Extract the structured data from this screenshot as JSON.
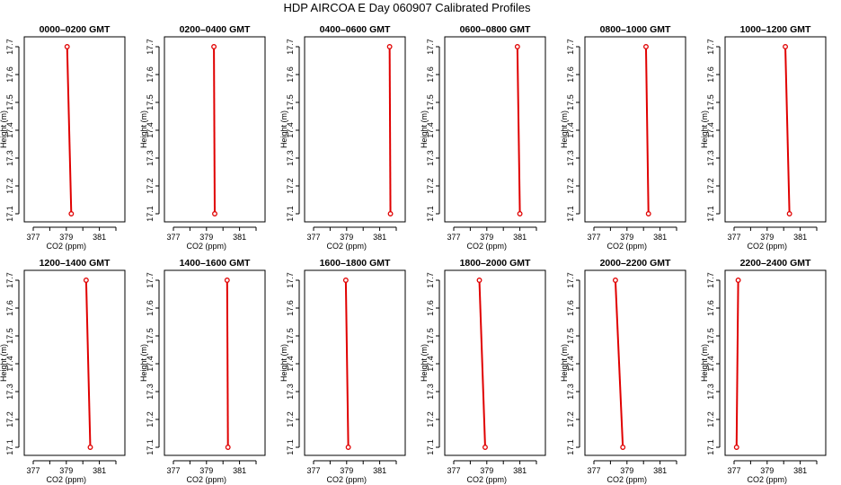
{
  "title": "HDP  AIRCOA E  Day 060907  Calibrated Profiles",
  "chart_data": [
    {
      "type": "line",
      "title": "0000–0200 GMT",
      "xlabel": "CO2 (ppm)",
      "ylabel": "Height (m)",
      "xlim": [
        377,
        382
      ],
      "ylim": [
        17.1,
        17.7
      ],
      "x_ticks": [
        377,
        379,
        381
      ],
      "y_ticks": [
        17.1,
        17.2,
        17.3,
        17.4,
        17.5,
        17.6,
        17.7
      ],
      "points": [
        {
          "co2": 379.05,
          "height": 17.7
        },
        {
          "co2": 379.3,
          "height": 17.1
        }
      ]
    },
    {
      "type": "line",
      "title": "0200–0400 GMT",
      "xlabel": "CO2 (ppm)",
      "ylabel": "Height (m)",
      "xlim": [
        377,
        382
      ],
      "ylim": [
        17.1,
        17.7
      ],
      "x_ticks": [
        377,
        379,
        381
      ],
      "y_ticks": [
        17.1,
        17.2,
        17.3,
        17.4,
        17.5,
        17.6,
        17.7
      ],
      "points": [
        {
          "co2": 379.45,
          "height": 17.7
        },
        {
          "co2": 379.5,
          "height": 17.1
        }
      ]
    },
    {
      "type": "line",
      "title": "0400–0600 GMT",
      "xlabel": "CO2 (ppm)",
      "ylabel": "Height (m)",
      "xlim": [
        377,
        382
      ],
      "ylim": [
        17.1,
        17.7
      ],
      "x_ticks": [
        377,
        379,
        381
      ],
      "y_ticks": [
        17.1,
        17.2,
        17.3,
        17.4,
        17.5,
        17.6,
        17.7
      ],
      "points": [
        {
          "co2": 381.6,
          "height": 17.7
        },
        {
          "co2": 381.65,
          "height": 17.1
        }
      ]
    },
    {
      "type": "line",
      "title": "0600–0800 GMT",
      "xlabel": "CO2 (ppm)",
      "ylabel": "Height (m)",
      "xlim": [
        377,
        382
      ],
      "ylim": [
        17.1,
        17.7
      ],
      "x_ticks": [
        377,
        379,
        381
      ],
      "y_ticks": [
        17.1,
        17.2,
        17.3,
        17.4,
        17.5,
        17.6,
        17.7
      ],
      "points": [
        {
          "co2": 380.85,
          "height": 17.7
        },
        {
          "co2": 381.0,
          "height": 17.1
        }
      ]
    },
    {
      "type": "line",
      "title": "0800–1000 GMT",
      "xlabel": "CO2 (ppm)",
      "ylabel": "Height (m)",
      "xlim": [
        377,
        382
      ],
      "ylim": [
        17.1,
        17.7
      ],
      "x_ticks": [
        377,
        379,
        381
      ],
      "y_ticks": [
        17.1,
        17.2,
        17.3,
        17.4,
        17.5,
        17.6,
        17.7
      ],
      "points": [
        {
          "co2": 380.15,
          "height": 17.7
        },
        {
          "co2": 380.3,
          "height": 17.1
        }
      ]
    },
    {
      "type": "line",
      "title": "1000–1200 GMT",
      "xlabel": "CO2 (ppm)",
      "ylabel": "Height (m)",
      "xlim": [
        377,
        382
      ],
      "ylim": [
        17.1,
        17.7
      ],
      "x_ticks": [
        377,
        379,
        381
      ],
      "y_ticks": [
        17.1,
        17.2,
        17.3,
        17.4,
        17.5,
        17.6,
        17.7
      ],
      "points": [
        {
          "co2": 380.1,
          "height": 17.7
        },
        {
          "co2": 380.35,
          "height": 17.1
        }
      ]
    },
    {
      "type": "line",
      "title": "1200–1400 GMT",
      "xlabel": "CO2 (ppm)",
      "ylabel": "Height (m)",
      "xlim": [
        377,
        382
      ],
      "ylim": [
        17.1,
        17.7
      ],
      "x_ticks": [
        377,
        379,
        381
      ],
      "y_ticks": [
        17.1,
        17.2,
        17.3,
        17.4,
        17.5,
        17.6,
        17.7
      ],
      "points": [
        {
          "co2": 380.2,
          "height": 17.7
        },
        {
          "co2": 380.45,
          "height": 17.1
        }
      ]
    },
    {
      "type": "line",
      "title": "1400–1600 GMT",
      "xlabel": "CO2 (ppm)",
      "ylabel": "Height (m)",
      "xlim": [
        377,
        382
      ],
      "ylim": [
        17.1,
        17.7
      ],
      "x_ticks": [
        377,
        379,
        381
      ],
      "y_ticks": [
        17.1,
        17.2,
        17.3,
        17.4,
        17.5,
        17.6,
        17.7
      ],
      "points": [
        {
          "co2": 380.25,
          "height": 17.7
        },
        {
          "co2": 380.3,
          "height": 17.1
        }
      ]
    },
    {
      "type": "line",
      "title": "1600–1800 GMT",
      "xlabel": "CO2 (ppm)",
      "ylabel": "Height (m)",
      "xlim": [
        377,
        382
      ],
      "ylim": [
        17.1,
        17.7
      ],
      "x_ticks": [
        377,
        379,
        381
      ],
      "y_ticks": [
        17.1,
        17.2,
        17.3,
        17.4,
        17.5,
        17.6,
        17.7
      ],
      "points": [
        {
          "co2": 378.95,
          "height": 17.7
        },
        {
          "co2": 379.1,
          "height": 17.1
        }
      ]
    },
    {
      "type": "line",
      "title": "1800–2000 GMT",
      "xlabel": "CO2 (ppm)",
      "ylabel": "Height (m)",
      "xlim": [
        377,
        382
      ],
      "ylim": [
        17.1,
        17.7
      ],
      "x_ticks": [
        377,
        379,
        381
      ],
      "y_ticks": [
        17.1,
        17.2,
        17.3,
        17.4,
        17.5,
        17.6,
        17.7
      ],
      "points": [
        {
          "co2": 378.55,
          "height": 17.7
        },
        {
          "co2": 378.9,
          "height": 17.1
        }
      ]
    },
    {
      "type": "line",
      "title": "2000–2200 GMT",
      "xlabel": "CO2 (ppm)",
      "ylabel": "Height (m)",
      "xlim": [
        377,
        382
      ],
      "ylim": [
        17.1,
        17.7
      ],
      "x_ticks": [
        377,
        379,
        381
      ],
      "y_ticks": [
        17.1,
        17.2,
        17.3,
        17.4,
        17.5,
        17.6,
        17.7
      ],
      "points": [
        {
          "co2": 378.3,
          "height": 17.7
        },
        {
          "co2": 378.75,
          "height": 17.1
        }
      ]
    },
    {
      "type": "line",
      "title": "2200–2400 GMT",
      "xlabel": "CO2 (ppm)",
      "ylabel": "Height (m)",
      "xlim": [
        377,
        382
      ],
      "ylim": [
        17.1,
        17.7
      ],
      "x_ticks": [
        377,
        379,
        381
      ],
      "y_ticks": [
        17.1,
        17.2,
        17.3,
        17.4,
        17.5,
        17.6,
        17.7
      ],
      "points": [
        {
          "co2": 377.25,
          "height": 17.7
        },
        {
          "co2": 377.15,
          "height": 17.1
        }
      ]
    }
  ]
}
